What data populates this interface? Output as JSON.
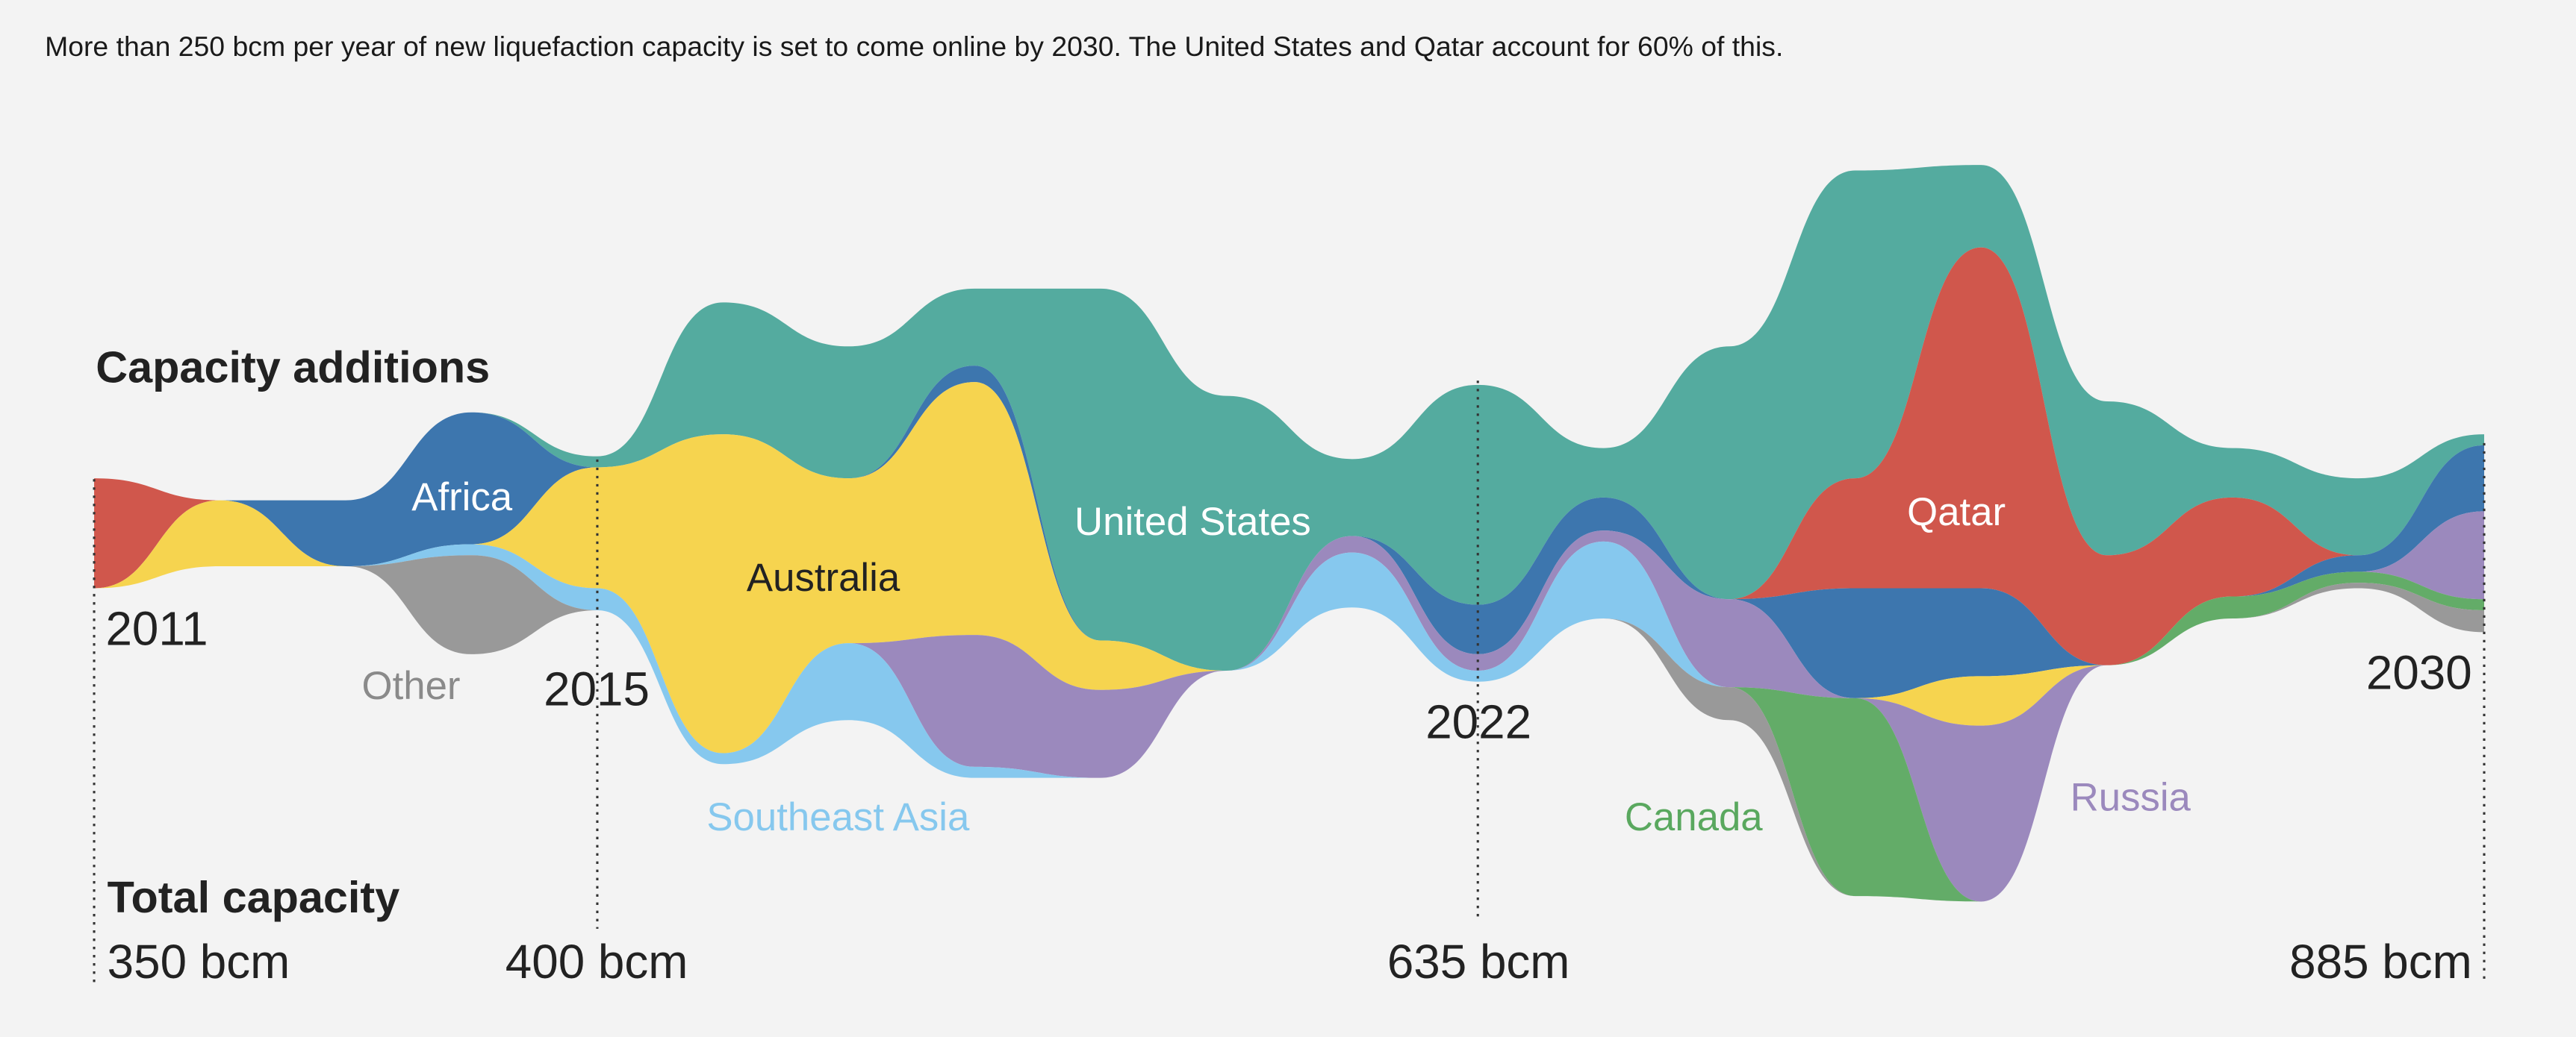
{
  "subtitle": "More than 250 bcm per year of new liquefaction capacity is set to come online by 2030. The United States and Qatar account for 60% of this.",
  "chart_data": {
    "type": "area",
    "variant": "streamgraph",
    "title": "",
    "xlabel": "",
    "ylabel": "",
    "unit": "bcm per year",
    "section_labels": {
      "additions": "Capacity additions",
      "total": "Total capacity"
    },
    "x": [
      2011,
      2012,
      2013,
      2014,
      2015,
      2016,
      2017,
      2018,
      2019,
      2020,
      2021,
      2022,
      2023,
      2024,
      2025,
      2026,
      2027,
      2028,
      2029,
      2030
    ],
    "year_markers": [
      {
        "year": 2011,
        "label": "2011",
        "total_label": "350 bcm"
      },
      {
        "year": 2015,
        "label": "2015",
        "total_label": "400 bcm"
      },
      {
        "year": 2022,
        "label": "2022",
        "total_label": "635 bcm"
      },
      {
        "year": 2030,
        "label": "2030",
        "total_label": "885 bcm"
      }
    ],
    "series": [
      {
        "name": "United States",
        "color": "#54ab9f",
        "values": [
          0,
          0,
          0,
          0,
          1,
          12,
          12,
          7,
          32,
          25,
          7,
          20,
          4.5,
          23,
          28,
          7.5,
          14,
          4.5,
          7,
          1
        ]
      },
      {
        "name": "Qatar",
        "color": "#d0574c",
        "values": [
          10,
          0,
          0,
          0,
          0,
          0,
          0,
          0,
          0,
          0,
          0,
          0,
          0,
          0,
          10,
          31,
          10,
          9,
          0,
          0
        ]
      },
      {
        "name": "Africa",
        "color": "#3d76ae",
        "values": [
          0,
          0,
          6,
          12,
          0,
          0,
          0,
          1.5,
          0,
          0,
          0,
          4.5,
          3,
          0,
          10,
          8,
          0,
          0,
          1.5,
          6
        ]
      },
      {
        "name": "Australia",
        "color": "#f6d44f",
        "values": [
          0,
          6,
          0,
          0,
          11,
          29,
          15,
          23,
          4.5,
          0,
          0,
          0,
          0,
          0,
          0,
          4.5,
          0,
          0,
          0,
          0
        ]
      },
      {
        "name": "Russia",
        "color": "#9b89bd",
        "values": [
          0,
          0,
          0,
          0,
          0,
          0,
          0,
          12,
          8,
          0,
          1.5,
          1.5,
          1,
          8,
          0,
          16,
          0,
          0,
          0,
          8
        ]
      },
      {
        "name": "Southeast Asia",
        "color": "#86c8ee",
        "values": [
          0,
          0,
          0,
          1,
          2,
          1,
          7,
          1,
          0,
          0,
          5,
          1,
          7,
          0,
          0,
          0,
          0,
          0,
          0,
          0
        ]
      },
      {
        "name": "Canada",
        "color": "#63ac68",
        "values": [
          0,
          0,
          0,
          0,
          0,
          0,
          0,
          0,
          0,
          0,
          0,
          0,
          0,
          0,
          18,
          0,
          0,
          2,
          1,
          1
        ]
      },
      {
        "name": "Other",
        "color": "#999999",
        "values": [
          0,
          0,
          0,
          9,
          0,
          0,
          0,
          0,
          0,
          0,
          0,
          0,
          0,
          3,
          0,
          0,
          0,
          0,
          0.5,
          2
        ]
      }
    ],
    "label_colors": {
      "Other": "#8a8a8a",
      "Southeast Asia": "#86c8ee",
      "Canada": "#5aa85f",
      "Russia": "#9b89bd",
      "Australia": "#222222",
      "Africa": "#ffffff",
      "United States": "#ffffff",
      "Qatar": "#ffffff"
    }
  }
}
